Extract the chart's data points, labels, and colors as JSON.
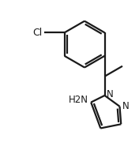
{
  "background_color": "#ffffff",
  "line_color": "#1a1a1a",
  "line_width": 1.6,
  "figsize": [
    1.76,
    2.09
  ],
  "dpi": 100,
  "cl_label": "Cl",
  "nh2_label": "H2N",
  "n_label": "N"
}
